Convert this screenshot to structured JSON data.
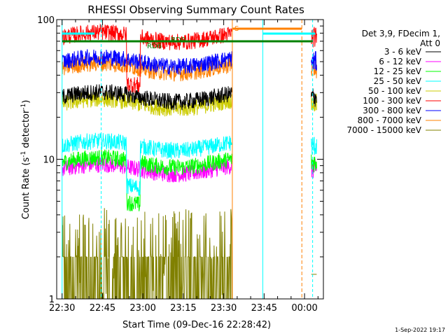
{
  "chart_data": {
    "type": "line",
    "title": "RHESSI Observing Summary Count Rates",
    "xlabel": "Start Time (09-Dec-16 22:28:42)",
    "ylabel_main": "Count Rate (s",
    "ylabel_sup1": "-1",
    "ylabel_mid": " detector",
    "ylabel_sup2": "-1",
    "ylabel_end": ")",
    "yscale": "log",
    "ylim": [
      1,
      100
    ],
    "y_ticks": [
      {
        "value": 1,
        "label": "1"
      },
      {
        "value": 10,
        "label": "10"
      },
      {
        "value": 100,
        "label": "100"
      }
    ],
    "x_range_min": [
      -2,
      97
    ],
    "x_ticks": [
      {
        "t": 0,
        "label": "22:30"
      },
      {
        "t": 15,
        "label": "22:45"
      },
      {
        "t": 30,
        "label": "23:00"
      },
      {
        "t": 45,
        "label": "23:15"
      },
      {
        "t": 60,
        "label": "23:30"
      },
      {
        "t": 75,
        "label": "23:45"
      },
      {
        "t": 90,
        "label": "00:00"
      }
    ],
    "legend_header_1": "Det 3,9, FDecim 1,",
    "legend_header_2": "Att 0",
    "series": [
      {
        "name": "3 - 6 keV",
        "color": "#000000",
        "level": 28
      },
      {
        "name": "6 - 12 keV",
        "color": "#ff00ff",
        "level": 8.5
      },
      {
        "name": "12 - 25 keV",
        "color": "#00ff00",
        "level": 9.5
      },
      {
        "name": "25 - 50 keV",
        "color": "#00ffff",
        "level": 12.5
      },
      {
        "name": "50 - 100 keV",
        "color": "#cccc00",
        "level": 25
      },
      {
        "name": "100 - 300 keV",
        "color": "#ff0000",
        "level": 75
      },
      {
        "name": "300 - 800 keV",
        "color": "#0000ff",
        "level": 50
      },
      {
        "name": "800 - 7000 keV",
        "color": "#ff8000",
        "level": 45
      },
      {
        "name": "7000 - 15000 keV",
        "color": "#808000",
        "level": 1.6
      }
    ],
    "annotations": [
      {
        "text": "RD6",
        "color": "#008000"
      },
      {
        "text": "RD0",
        "color": "#008000"
      },
      {
        "text": "S",
        "color": "#ff8000"
      }
    ],
    "timestamp": "1-Sep-2022 19:17"
  }
}
